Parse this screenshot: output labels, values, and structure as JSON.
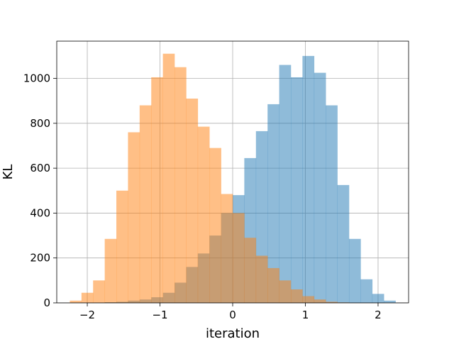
{
  "chart_data": {
    "type": "bar",
    "title": "",
    "xlabel": "iteration",
    "ylabel": "KL",
    "xlim": [
      -2.42,
      2.42
    ],
    "ylim": [
      0,
      1166
    ],
    "xticks": [
      -2,
      -1,
      0,
      1,
      2
    ],
    "xtick_labels": [
      "−2",
      "−1",
      "0",
      "1",
      "2"
    ],
    "yticks": [
      0,
      200,
      400,
      600,
      800,
      1000
    ],
    "ytick_labels": [
      "0",
      "200",
      "400",
      "600",
      "800",
      "1000"
    ],
    "grid": true,
    "legend": "none",
    "bin_width": 0.16,
    "series": [
      {
        "color": "#1f77b4",
        "opacity": 0.5,
        "bin_starts": [
          -1.76,
          -1.6,
          -1.44,
          -1.28,
          -1.12,
          -0.96,
          -0.8,
          -0.64,
          -0.48,
          -0.32,
          -0.16,
          0.0,
          0.16,
          0.32,
          0.48,
          0.64,
          0.8,
          0.96,
          1.12,
          1.28,
          1.44,
          1.6,
          1.76,
          1.92,
          2.08
        ],
        "counts": [
          3,
          5,
          10,
          15,
          25,
          45,
          90,
          160,
          220,
          300,
          400,
          480,
          645,
          765,
          885,
          1060,
          1005,
          1100,
          1025,
          880,
          525,
          285,
          105,
          40,
          10
        ]
      },
      {
        "color": "#ff7f0e",
        "opacity": 0.5,
        "bin_starts": [
          -2.24,
          -2.08,
          -1.92,
          -1.76,
          -1.6,
          -1.44,
          -1.28,
          -1.12,
          -0.96,
          -0.8,
          -0.64,
          -0.48,
          -0.32,
          -0.16,
          0.0,
          0.16,
          0.32,
          0.48,
          0.64,
          0.8,
          0.96,
          1.12,
          1.28,
          1.44
        ],
        "counts": [
          10,
          45,
          100,
          285,
          500,
          760,
          880,
          1005,
          1110,
          1050,
          910,
          785,
          690,
          485,
          400,
          290,
          210,
          155,
          100,
          60,
          30,
          15,
          5,
          2
        ]
      }
    ]
  }
}
